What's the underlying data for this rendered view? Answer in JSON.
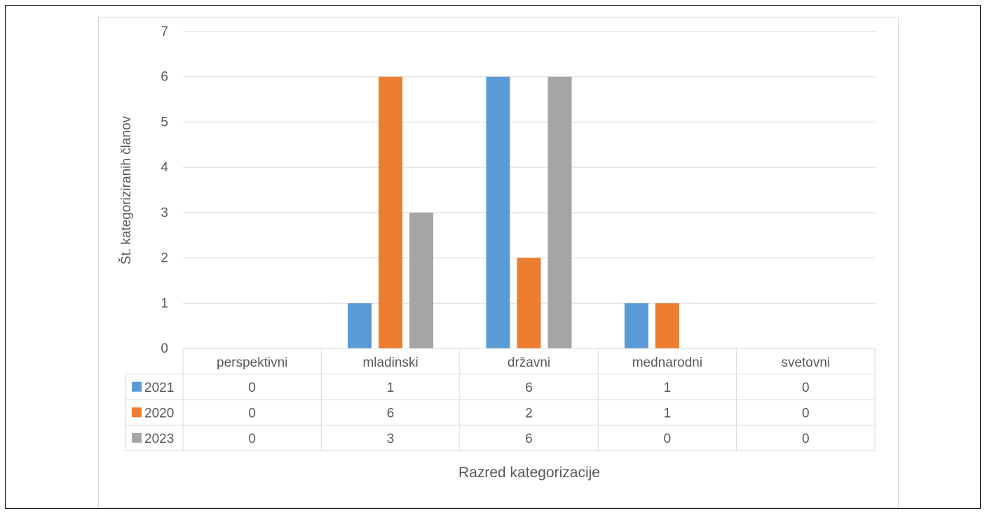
{
  "chart_data": {
    "type": "bar",
    "categories": [
      "perspektivni",
      "mladinski",
      "državni",
      "mednarodni",
      "svetovni"
    ],
    "series": [
      {
        "name": "2021",
        "color": "#5b9bd5",
        "values": [
          0,
          1,
          6,
          1,
          0
        ]
      },
      {
        "name": "2020",
        "color": "#ed7d31",
        "values": [
          0,
          6,
          2,
          1,
          0
        ]
      },
      {
        "name": "2023",
        "color": "#a5a5a5",
        "values": [
          0,
          3,
          6,
          0,
          0
        ]
      }
    ],
    "ylim": [
      0,
      7
    ],
    "yticks": [
      0,
      1,
      2,
      3,
      4,
      5,
      6,
      7
    ],
    "ylabel": "Št. kategoriziranih članov",
    "xlabel": "Razred kategorizacije",
    "grid": true,
    "legend": "data-table",
    "title": ""
  }
}
